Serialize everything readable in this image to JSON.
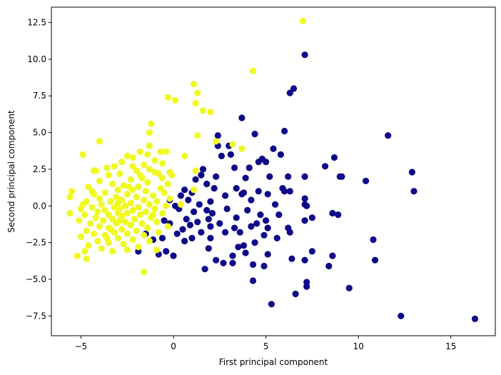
{
  "chart_data": {
    "type": "scatter",
    "title": "",
    "xlabel": "First principal component",
    "ylabel": "Second principal component",
    "xlim": [
      -6.6,
      17.4
    ],
    "ylim": [
      -8.85,
      13.55
    ],
    "xticks": [
      -5,
      0,
      5,
      10,
      15
    ],
    "xtick_labels": [
      "−5",
      "0",
      "5",
      "10",
      "15"
    ],
    "yticks": [
      -7.5,
      -5.0,
      -2.5,
      0.0,
      2.5,
      5.0,
      7.5,
      10.0,
      12.5
    ],
    "ytick_labels": [
      "−7.5",
      "−5.0",
      "−2.5",
      "0.0",
      "2.5",
      "5.0",
      "7.5",
      "10.0",
      "12.5"
    ],
    "grid": false,
    "colors": {
      "class_0": "#0d0887",
      "class_1": "#f0f921"
    },
    "series": [
      {
        "class": 0,
        "color": "#0d0887",
        "points": [
          [
            16.3,
            -7.7
          ],
          [
            12.3,
            -7.5
          ],
          [
            13.0,
            1.0
          ],
          [
            12.9,
            2.3
          ],
          [
            11.6,
            4.8
          ],
          [
            10.9,
            -3.7
          ],
          [
            10.8,
            -2.3
          ],
          [
            10.4,
            1.7
          ],
          [
            9.5,
            -5.6
          ],
          [
            9.1,
            2.0
          ],
          [
            9.0,
            2.0
          ],
          [
            8.9,
            -0.6
          ],
          [
            8.7,
            3.3
          ],
          [
            8.6,
            -0.5
          ],
          [
            8.6,
            -3.4
          ],
          [
            8.4,
            -4.1
          ],
          [
            8.2,
            2.7
          ],
          [
            7.5,
            -0.8
          ],
          [
            7.5,
            -3.1
          ],
          [
            7.1,
            10.3
          ],
          [
            7.2,
            0.0
          ],
          [
            7.1,
            0.1
          ],
          [
            7.1,
            -1.0
          ],
          [
            7.1,
            0.5
          ],
          [
            7.1,
            2.0
          ],
          [
            7.2,
            -5.5
          ],
          [
            7.2,
            -5.2
          ],
          [
            7.1,
            -3.7
          ],
          [
            6.6,
            -6.0
          ],
          [
            6.5,
            8.0
          ],
          [
            6.3,
            7.7
          ],
          [
            6.2,
            -1.5
          ],
          [
            6.3,
            -1.8
          ],
          [
            6.4,
            -3.6
          ],
          [
            6.2,
            2.0
          ],
          [
            6.3,
            1.0
          ],
          [
            6.0,
            5.1
          ],
          [
            6.0,
            1.0
          ],
          [
            5.8,
            3.5
          ],
          [
            5.9,
            1.2
          ],
          [
            5.7,
            -0.6
          ],
          [
            5.6,
            -2.2
          ],
          [
            5.5,
            0.1
          ],
          [
            5.3,
            -6.7
          ],
          [
            5.4,
            3.9
          ],
          [
            5.2,
            2.0
          ],
          [
            5.1,
            -1.5
          ],
          [
            5.0,
            -1.0
          ],
          [
            5.1,
            0.8
          ],
          [
            5.0,
            3.0
          ],
          [
            4.9,
            -2.0
          ],
          [
            4.9,
            -4.1
          ],
          [
            4.8,
            3.2
          ],
          [
            4.6,
            3.0
          ],
          [
            4.6,
            1.0
          ],
          [
            4.5,
            -1.2
          ],
          [
            4.4,
            4.9
          ],
          [
            4.4,
            -2.5
          ],
          [
            4.3,
            -4.0
          ],
          [
            4.3,
            -5.1
          ],
          [
            4.2,
            0.4
          ],
          [
            4.2,
            -1.4
          ],
          [
            4.1,
            2.6
          ],
          [
            4.0,
            -0.3
          ],
          [
            3.9,
            1.9
          ],
          [
            3.8,
            0.9
          ],
          [
            3.8,
            -2.7
          ],
          [
            3.7,
            6.0
          ],
          [
            3.7,
            0.8
          ],
          [
            3.6,
            -1.8
          ],
          [
            3.5,
            -2.8
          ],
          [
            3.4,
            1.2
          ],
          [
            3.4,
            -0.8
          ],
          [
            3.3,
            2.6
          ],
          [
            3.3,
            -1.5
          ],
          [
            3.2,
            -3.4
          ],
          [
            3.2,
            -3.9
          ],
          [
            3.1,
            3.5
          ],
          [
            3.0,
            4.1
          ],
          [
            2.9,
            -0.2
          ],
          [
            2.8,
            0.7
          ],
          [
            2.8,
            -1.8
          ],
          [
            2.7,
            -3.9
          ],
          [
            2.6,
            3.4
          ],
          [
            2.5,
            -1.2
          ],
          [
            2.4,
            4.8
          ],
          [
            2.4,
            4.1
          ],
          [
            2.3,
            2.0
          ],
          [
            2.3,
            -3.7
          ],
          [
            2.2,
            1.2
          ],
          [
            2.1,
            -0.5
          ],
          [
            2.0,
            -2.2
          ],
          [
            2.0,
            0.3
          ],
          [
            1.9,
            -0.9
          ],
          [
            1.9,
            -2.9
          ],
          [
            1.8,
            1.5
          ],
          [
            1.8,
            -0.3
          ],
          [
            1.7,
            -4.3
          ],
          [
            1.6,
            2.5
          ],
          [
            1.5,
            -1.8
          ],
          [
            1.4,
            0.1
          ],
          [
            1.3,
            -1.1
          ],
          [
            1.2,
            1.8
          ],
          [
            1.1,
            -0.4
          ],
          [
            1.0,
            0.9
          ],
          [
            1.0,
            -2.2
          ],
          [
            0.9,
            -1.3
          ],
          [
            0.8,
            0.4
          ],
          [
            0.7,
            -0.9
          ],
          [
            0.6,
            1.1
          ],
          [
            0.6,
            -2.4
          ],
          [
            0.5,
            -1.6
          ],
          [
            0.4,
            0.7
          ],
          [
            0.3,
            -0.2
          ],
          [
            0.2,
            -1.9
          ],
          [
            0.1,
            0.0
          ],
          [
            0.0,
            -3.4
          ],
          [
            -0.2,
            -1.2
          ],
          [
            -0.2,
            0.4
          ],
          [
            -0.4,
            -3.1
          ],
          [
            -0.6,
            -2.2
          ],
          [
            -0.8,
            -3.3
          ],
          [
            -1.1,
            -2.3
          ],
          [
            -1.5,
            -1.9
          ],
          [
            -1.9,
            -3.1
          ],
          [
            -0.5,
            -1.0
          ],
          [
            1.5,
            2.1
          ],
          [
            2.0,
            -1.4
          ],
          [
            3.9,
            -3.2
          ],
          [
            4.7,
            -0.6
          ],
          [
            5.1,
            -3.3
          ]
        ]
      },
      {
        "class": 1,
        "color": "#f0f921",
        "points": [
          [
            7.0,
            12.6
          ],
          [
            4.3,
            9.2
          ],
          [
            1.1,
            8.3
          ],
          [
            1.3,
            7.7
          ],
          [
            -0.3,
            7.4
          ],
          [
            0.1,
            7.2
          ],
          [
            1.2,
            7.0
          ],
          [
            1.6,
            6.5
          ],
          [
            2.0,
            6.4
          ],
          [
            -1.2,
            5.6
          ],
          [
            -1.3,
            5.0
          ],
          [
            1.3,
            4.8
          ],
          [
            -4.0,
            4.4
          ],
          [
            2.3,
            4.4
          ],
          [
            3.2,
            4.2
          ],
          [
            -1.3,
            4.1
          ],
          [
            3.7,
            3.9
          ],
          [
            -1.8,
            3.7
          ],
          [
            -0.7,
            3.7
          ],
          [
            -0.4,
            3.7
          ],
          [
            -4.9,
            3.5
          ],
          [
            -1.4,
            3.5
          ],
          [
            0.6,
            3.4
          ],
          [
            -2.5,
            3.4
          ],
          [
            -2.2,
            3.3
          ],
          [
            -1.0,
            3.1
          ],
          [
            -2.8,
            3.0
          ],
          [
            -0.6,
            2.9
          ],
          [
            -1.6,
            2.8
          ],
          [
            -3.2,
            2.7
          ],
          [
            -3.6,
            2.6
          ],
          [
            -1.3,
            2.5
          ],
          [
            -4.2,
            2.4
          ],
          [
            1.2,
            2.4
          ],
          [
            -2.0,
            2.4
          ],
          [
            -0.2,
            2.3
          ],
          [
            -0.8,
            2.2
          ],
          [
            -2.9,
            2.2
          ],
          [
            -3.5,
            2.1
          ],
          [
            -1.8,
            2.1
          ],
          [
            -0.1,
            2.1
          ],
          [
            -0.6,
            1.9
          ],
          [
            -2.3,
            1.8
          ],
          [
            -4.0,
            1.7
          ],
          [
            -1.4,
            1.6
          ],
          [
            -3.3,
            1.5
          ],
          [
            -0.3,
            1.5
          ],
          [
            -2.7,
            1.4
          ],
          [
            -1.9,
            1.3
          ],
          [
            -4.6,
            1.3
          ],
          [
            -0.7,
            1.2
          ],
          [
            -3.0,
            1.1
          ],
          [
            -2.2,
            1.1
          ],
          [
            1.1,
            1.1
          ],
          [
            -5.5,
            1.0
          ],
          [
            -1.5,
            1.0
          ],
          [
            -3.7,
            0.9
          ],
          [
            -0.5,
            0.9
          ],
          [
            -2.5,
            0.8
          ],
          [
            -4.3,
            0.8
          ],
          [
            -1.1,
            0.7
          ],
          [
            -5.6,
            0.6
          ],
          [
            -3.1,
            0.6
          ],
          [
            -2.0,
            0.6
          ],
          [
            -0.2,
            0.5
          ],
          [
            -4.0,
            0.5
          ],
          [
            -2.8,
            0.4
          ],
          [
            -1.6,
            0.4
          ],
          [
            -4.7,
            0.3
          ],
          [
            -3.4,
            0.3
          ],
          [
            -0.9,
            0.3
          ],
          [
            -2.3,
            0.2
          ],
          [
            -3.9,
            0.1
          ],
          [
            -1.3,
            0.1
          ],
          [
            -2.6,
            0.0
          ],
          [
            -0.4,
            0.0
          ],
          [
            -4.4,
            -0.1
          ],
          [
            -3.2,
            -0.1
          ],
          [
            -1.9,
            -0.1
          ],
          [
            -5.0,
            -0.2
          ],
          [
            -2.9,
            -0.2
          ],
          [
            -1.0,
            -0.2
          ],
          [
            -3.7,
            -0.3
          ],
          [
            -2.2,
            -0.3
          ],
          [
            -4.1,
            -0.4
          ],
          [
            -1.5,
            -0.4
          ],
          [
            -5.6,
            -0.5
          ],
          [
            -3.0,
            -0.5
          ],
          [
            -2.5,
            -0.5
          ],
          [
            -0.6,
            -0.5
          ],
          [
            -4.8,
            -0.6
          ],
          [
            -3.5,
            -0.6
          ],
          [
            -1.8,
            -0.6
          ],
          [
            -2.8,
            -0.7
          ],
          [
            -4.2,
            -0.8
          ],
          [
            -1.2,
            -0.8
          ],
          [
            -3.3,
            -0.9
          ],
          [
            -2.1,
            -0.9
          ],
          [
            -5.1,
            -1.0
          ],
          [
            -3.8,
            -1.0
          ],
          [
            -2.6,
            -1.1
          ],
          [
            -0.9,
            -1.1
          ],
          [
            -4.5,
            -1.2
          ],
          [
            -3.1,
            -1.2
          ],
          [
            -1.7,
            -1.2
          ],
          [
            -2.3,
            -1.3
          ],
          [
            -4.0,
            -1.4
          ],
          [
            -3.5,
            -1.5
          ],
          [
            -1.4,
            -1.5
          ],
          [
            -2.8,
            -1.6
          ],
          [
            -4.7,
            -1.7
          ],
          [
            -2.0,
            -1.7
          ],
          [
            -3.2,
            -1.8
          ],
          [
            -0.8,
            -1.8
          ],
          [
            -4.3,
            -1.9
          ],
          [
            -2.5,
            -1.9
          ],
          [
            -3.7,
            -2.0
          ],
          [
            -1.6,
            -2.0
          ],
          [
            -5.0,
            -2.1
          ],
          [
            -3.0,
            -2.2
          ],
          [
            -2.2,
            -2.3
          ],
          [
            -4.1,
            -2.4
          ],
          [
            -1.3,
            -2.4
          ],
          [
            -3.5,
            -2.5
          ],
          [
            -2.7,
            -2.6
          ],
          [
            -4.6,
            -2.7
          ],
          [
            -1.9,
            -2.8
          ],
          [
            -3.9,
            -2.9
          ],
          [
            -0.9,
            -3.0
          ],
          [
            -2.5,
            -3.0
          ],
          [
            -4.8,
            -3.1
          ],
          [
            -3.3,
            -3.1
          ],
          [
            -5.2,
            -3.4
          ],
          [
            -4.7,
            -3.6
          ],
          [
            -1.6,
            -4.5
          ],
          [
            -4.3,
            2.4
          ],
          [
            -2.2,
            2.7
          ],
          [
            -3.4,
            -1.6
          ],
          [
            -1.1,
            -0.6
          ],
          [
            -2.4,
            1.3
          ],
          [
            -4.9,
            0.1
          ],
          [
            -3.6,
            -2.2
          ],
          [
            -0.3,
            -1.4
          ],
          [
            -1.7,
            1.9
          ],
          [
            -2.9,
            -1.0
          ],
          [
            -4.4,
            1.0
          ],
          [
            -1.0,
            2.3
          ],
          [
            -3.0,
            0.2
          ],
          [
            0.4,
            0.1
          ]
        ]
      }
    ]
  }
}
